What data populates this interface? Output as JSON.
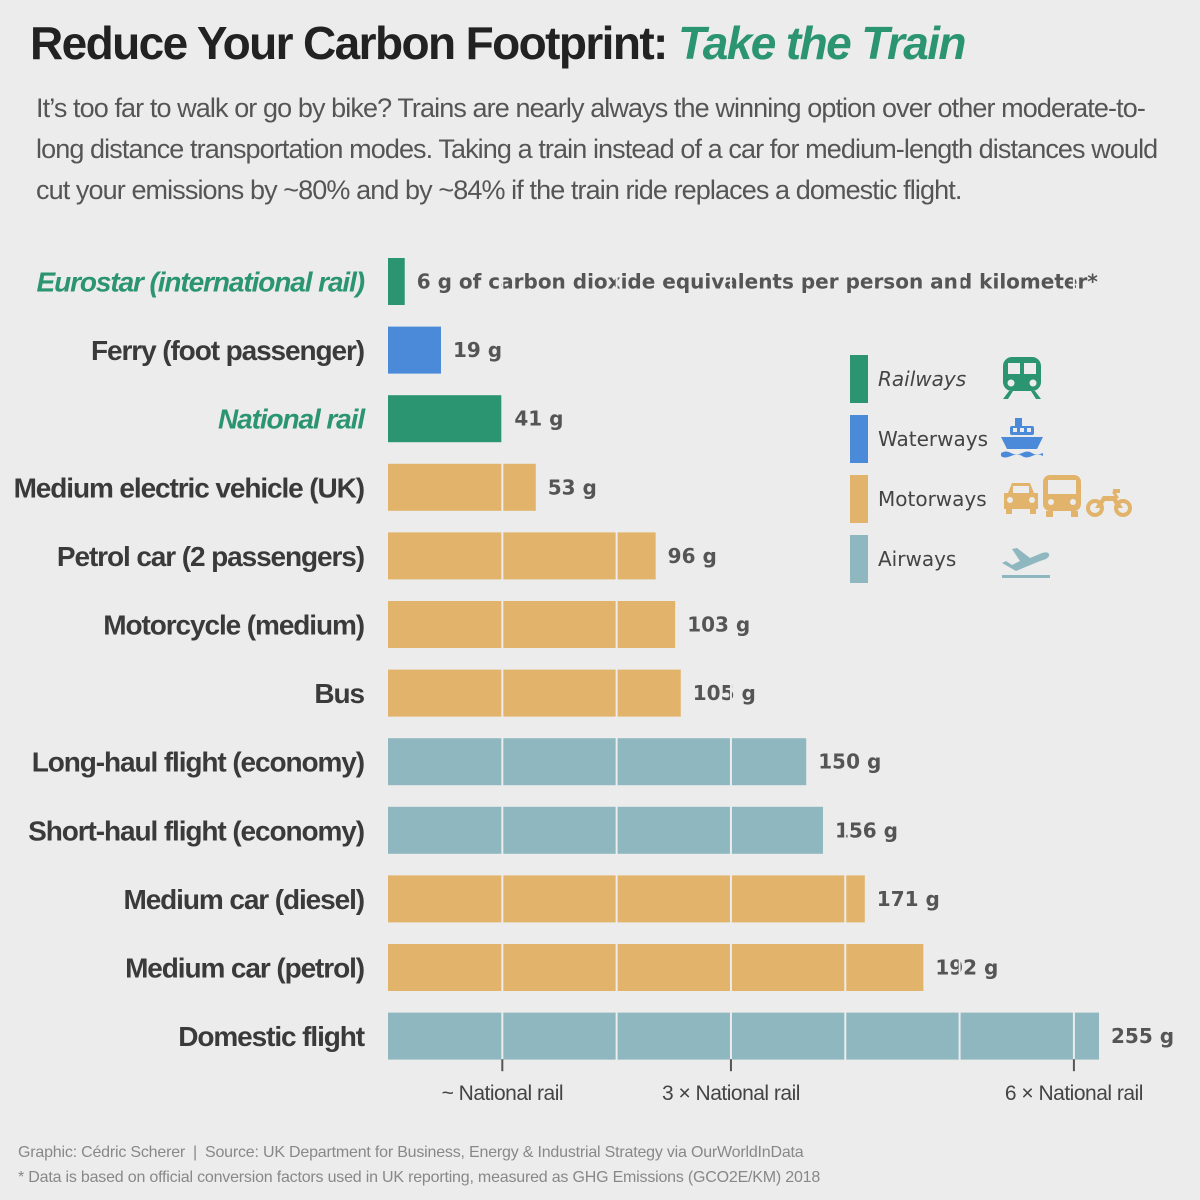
{
  "header": {
    "title_main": "Reduce Your Carbon Footprint:",
    "title_accent": "Take the Train",
    "subtitle": "It’s too far to walk or go by bike? Trains are nearly always the winning option over other moderate-to-long distance transportation modes. Taking a train instead of a car for medium-length distances would cut your emissions by ~80% and by ~84% if the train ride replaces a domestic flight."
  },
  "colors": {
    "Railways": "#2b9470",
    "Waterways": "#4a8ad8",
    "Motorways": "#e2b46b",
    "Airways": "#8fb7bf",
    "accent": "#2b9470",
    "background": "#ececec"
  },
  "chart_data": {
    "type": "bar",
    "orientation": "horizontal",
    "unit": "g of carbon dioxide equivalents per person and kilometer*",
    "xlim": [
      0,
      255
    ],
    "categories": [
      "Eurostar (international rail)",
      "Ferry (foot passenger)",
      "National rail",
      "Medium electric vehicle (UK)",
      "Petrol car (2 passengers)",
      "Motorcycle (medium)",
      "Bus",
      "Long-haul flight (economy)",
      "Short-haul flight (economy)",
      "Medium car (diesel)",
      "Medium car (petrol)",
      "Domestic flight"
    ],
    "values": [
      6,
      19,
      41,
      53,
      96,
      103,
      105,
      150,
      156,
      171,
      192,
      255
    ],
    "groups": [
      "Railways",
      "Waterways",
      "Railways",
      "Motorways",
      "Motorways",
      "Motorways",
      "Motorways",
      "Airways",
      "Airways",
      "Motorways",
      "Motorways",
      "Airways"
    ],
    "value_labels": [
      "6 g of carbon dioxide equivalents per person and kilometer*",
      "19 g",
      "41 g",
      "53 g",
      "96 g",
      "103 g",
      "105 g",
      "150 g",
      "156 g",
      "171 g",
      "192 g",
      "255 g"
    ],
    "highlighted": [
      "Eurostar (international rail)",
      "National rail"
    ],
    "reference_lines": [
      1,
      2,
      3,
      4,
      5,
      6
    ],
    "reference_unit_value": 41,
    "x_ticks": [
      {
        "value": 41,
        "label": "~ National rail"
      },
      {
        "value": 123,
        "label": "3 × National rail"
      },
      {
        "value": 246,
        "label": "6 × National rail"
      }
    ],
    "legend": {
      "placement": "right",
      "entries": [
        {
          "name": "Railways",
          "icons": [
            "train-icon"
          ]
        },
        {
          "name": "Waterways",
          "icons": [
            "ferry-icon"
          ]
        },
        {
          "name": "Motorways",
          "icons": [
            "car-icon",
            "bus-icon",
            "motorcycle-icon"
          ]
        },
        {
          "name": "Airways",
          "icons": [
            "airplane-icon"
          ]
        }
      ]
    }
  },
  "footer": {
    "credit": "Graphic: Cédric Scherer",
    "separator": "|",
    "source": "Source: UK Department for Business, Energy & Industrial Strategy via OurWorldInData",
    "note": "* Data is based on official conversion factors used in UK reporting, measured as GHG Emissions (GCO2E/KM) 2018"
  }
}
